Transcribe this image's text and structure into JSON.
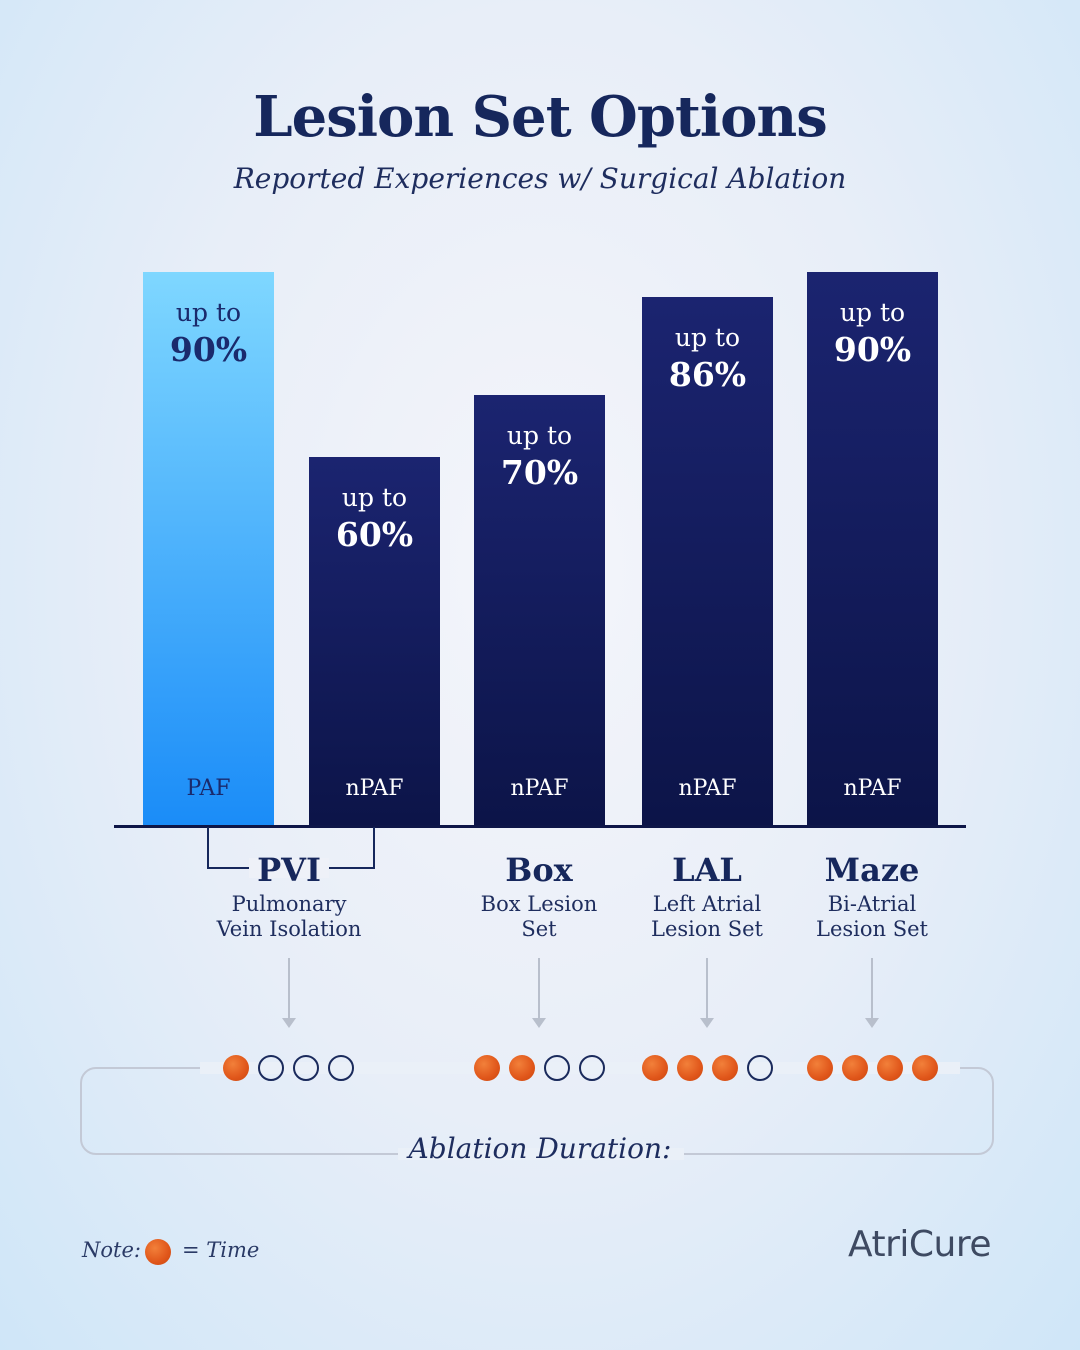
{
  "title": "Lesion Set Options",
  "subtitle": "Reported Experiences w/ Surgical Ablation",
  "chart_data": {
    "type": "bar",
    "title": "Lesion Set Options",
    "subtitle": "Reported Experiences w/ Surgical Ablation",
    "value_prefix": "up to",
    "categories": [
      "PAF",
      "nPAF",
      "nPAF",
      "nPAF",
      "nPAF"
    ],
    "values": [
      90,
      60,
      70,
      86,
      90
    ],
    "value_labels": [
      "90%",
      "60%",
      "70%",
      "86%",
      "90%"
    ],
    "ylim": [
      0,
      100
    ],
    "colors": [
      "#4fb6ff",
      "#141c5c",
      "#141c5c",
      "#141c5c",
      "#141c5c"
    ]
  },
  "lesion_sets": [
    {
      "abbr": "PVI",
      "name_line1": "Pulmonary",
      "name_line2": "Vein Isolation",
      "duration": 1,
      "duration_max": 4
    },
    {
      "abbr": "Box",
      "name_line1": "Box Lesion",
      "name_line2": "Set",
      "duration": 2,
      "duration_max": 4
    },
    {
      "abbr": "LAL",
      "name_line1": "Left Atrial",
      "name_line2": "Lesion Set",
      "duration": 3,
      "duration_max": 4
    },
    {
      "abbr": "Maze",
      "name_line1": "Bi-Atrial",
      "name_line2": "Lesion Set",
      "duration": 4,
      "duration_max": 4
    }
  ],
  "duration_label": "Ablation Duration:",
  "note": {
    "prefix": "Note:",
    "suffix": "= Time"
  },
  "logo": "AtriCure",
  "colors": {
    "dot_on": "#e0561a",
    "bar_dark": "#141c5c",
    "bar_light": "#4fb6ff"
  }
}
